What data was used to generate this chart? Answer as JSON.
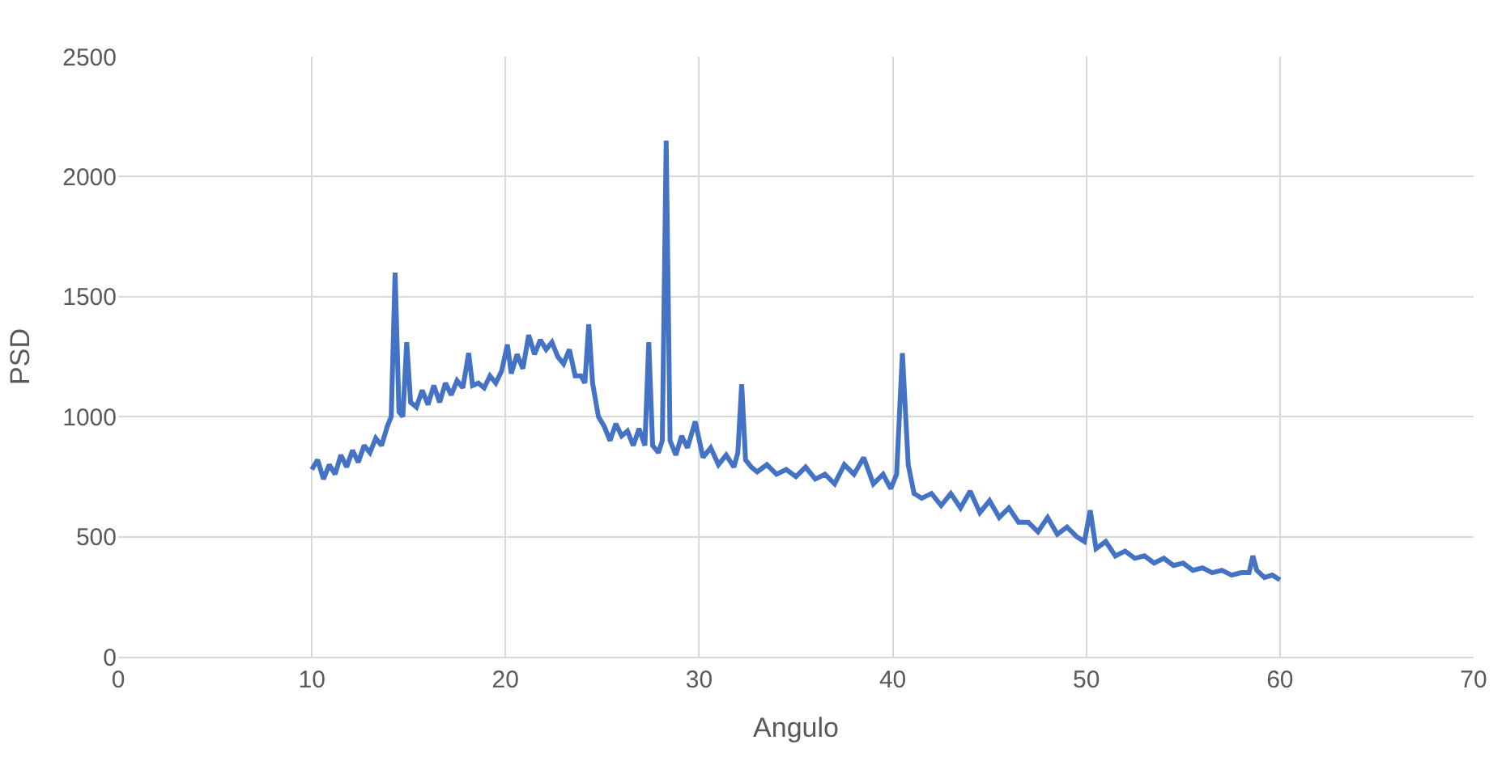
{
  "chart_data": {
    "type": "line",
    "xlabel": "Angulo",
    "ylabel": "PSD",
    "x": [
      10.0,
      10.3,
      10.6,
      10.9,
      11.2,
      11.5,
      11.8,
      12.1,
      12.4,
      12.7,
      13.0,
      13.3,
      13.6,
      13.9,
      14.1,
      14.3,
      14.5,
      14.7,
      14.9,
      15.1,
      15.4,
      15.7,
      16.0,
      16.3,
      16.6,
      16.9,
      17.2,
      17.5,
      17.8,
      18.1,
      18.3,
      18.6,
      18.9,
      19.2,
      19.5,
      19.8,
      20.1,
      20.3,
      20.6,
      20.9,
      21.2,
      21.5,
      21.8,
      22.1,
      22.4,
      22.7,
      23.0,
      23.3,
      23.6,
      23.9,
      24.1,
      24.3,
      24.5,
      24.8,
      25.1,
      25.4,
      25.7,
      26.0,
      26.3,
      26.6,
      26.9,
      27.2,
      27.4,
      27.6,
      27.9,
      28.1,
      28.3,
      28.5,
      28.8,
      29.1,
      29.4,
      29.8,
      30.2,
      30.6,
      31.0,
      31.4,
      31.8,
      32.0,
      32.2,
      32.4,
      32.7,
      33.0,
      33.5,
      34.0,
      34.5,
      35.0,
      35.5,
      36.0,
      36.5,
      37.0,
      37.5,
      38.0,
      38.5,
      39.0,
      39.5,
      39.9,
      40.2,
      40.5,
      40.8,
      41.1,
      41.5,
      42.0,
      42.5,
      43.0,
      43.5,
      44.0,
      44.5,
      45.0,
      45.5,
      46.0,
      46.5,
      47.0,
      47.5,
      48.0,
      48.5,
      49.0,
      49.5,
      49.9,
      50.2,
      50.5,
      51.0,
      51.5,
      52.0,
      52.5,
      53.0,
      53.5,
      54.0,
      54.5,
      55.0,
      55.5,
      56.0,
      56.5,
      57.0,
      57.5,
      58.0,
      58.4,
      58.6,
      58.8,
      59.2,
      59.6,
      60.0
    ],
    "series": [
      {
        "color": "#4472c4",
        "values": [
          780,
          820,
          740,
          800,
          760,
          840,
          790,
          860,
          810,
          880,
          850,
          910,
          880,
          960,
          1000,
          1600,
          1020,
          1000,
          1310,
          1060,
          1040,
          1110,
          1050,
          1130,
          1060,
          1140,
          1090,
          1150,
          1120,
          1265,
          1130,
          1140,
          1120,
          1170,
          1140,
          1190,
          1300,
          1180,
          1260,
          1200,
          1340,
          1260,
          1320,
          1280,
          1310,
          1250,
          1220,
          1280,
          1170,
          1170,
          1140,
          1385,
          1140,
          1000,
          960,
          900,
          970,
          920,
          940,
          880,
          950,
          880,
          1310,
          880,
          850,
          900,
          2150,
          900,
          840,
          920,
          870,
          980,
          830,
          870,
          800,
          840,
          790,
          850,
          1135,
          820,
          790,
          770,
          800,
          760,
          780,
          750,
          790,
          740,
          760,
          720,
          800,
          760,
          830,
          720,
          760,
          700,
          760,
          1265,
          800,
          680,
          660,
          680,
          630,
          680,
          620,
          690,
          600,
          650,
          580,
          620,
          560,
          560,
          520,
          580,
          510,
          540,
          500,
          480,
          610,
          450,
          480,
          420,
          440,
          410,
          420,
          390,
          410,
          380,
          390,
          360,
          370,
          350,
          360,
          340,
          350,
          350,
          420,
          360,
          330,
          340,
          320
        ]
      }
    ],
    "xlim": [
      0,
      70
    ],
    "xticks": [
      0,
      10,
      20,
      30,
      40,
      50,
      60,
      70
    ],
    "ylim": [
      0,
      2500
    ],
    "yticks": [
      0,
      500,
      1000,
      1500,
      2000,
      2500
    ],
    "grid": true,
    "line_style": "solid",
    "marker": "none"
  }
}
